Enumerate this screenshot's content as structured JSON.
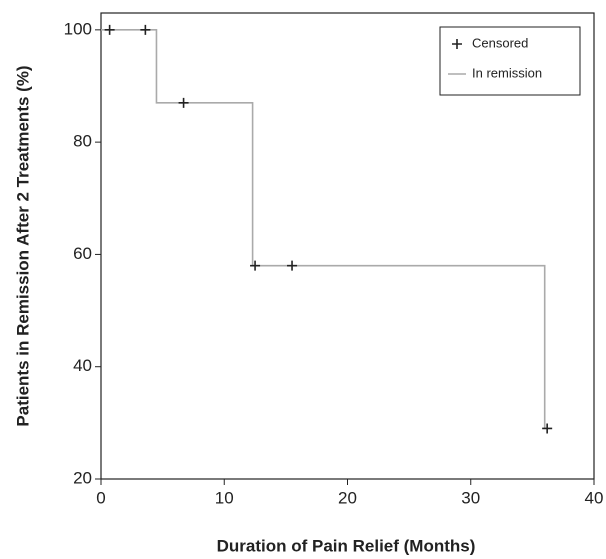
{
  "chart_data": {
    "type": "line",
    "x_label": "Duration of Pain Relief (Months)",
    "y_label": "Patients in Remission After 2 Treatments (%)",
    "xlim": [
      0,
      40
    ],
    "ylim": [
      20,
      103
    ],
    "xticks": [
      0,
      10,
      20,
      30,
      40
    ],
    "yticks": [
      20,
      40,
      60,
      80,
      100
    ],
    "grid": false,
    "legend": "top-right",
    "series": [
      {
        "name": "Censored",
        "style": "marker",
        "color": "#222222",
        "x": [
          0.7,
          3.6,
          6.7,
          12.5,
          15.5,
          36.2
        ],
        "values": [
          100,
          100,
          87,
          58,
          58,
          29
        ]
      },
      {
        "name": "In remission",
        "style": "line",
        "color": "#aaaaaa",
        "x": [
          0,
          4.5,
          4.5,
          12.3,
          12.3,
          36,
          36
        ],
        "values": [
          100,
          100,
          87,
          87,
          58,
          58,
          29
        ]
      }
    ]
  }
}
